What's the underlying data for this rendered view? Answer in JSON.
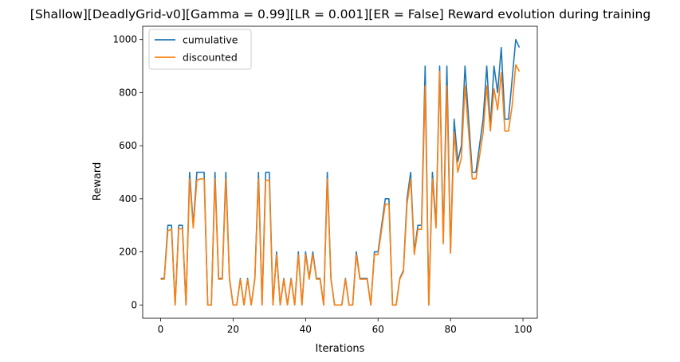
{
  "chart_data": {
    "type": "line",
    "title": "[Shallow][DeadlyGrid-v0][Gamma = 0.99][LR = 0.001][ER = False] Reward evolution during training",
    "xlabel": "Iterations",
    "ylabel": "Reward",
    "xlim": [
      -4.95,
      103.95
    ],
    "ylim": [
      -50,
      1050
    ],
    "xticks": [
      0,
      20,
      40,
      60,
      80,
      100
    ],
    "yticks": [
      0,
      200,
      400,
      600,
      800,
      1000
    ],
    "grid": false,
    "legend_position": "upper-left",
    "x": [
      0,
      1,
      2,
      3,
      4,
      5,
      6,
      7,
      8,
      9,
      10,
      11,
      12,
      13,
      14,
      15,
      16,
      17,
      18,
      19,
      20,
      21,
      22,
      23,
      24,
      25,
      26,
      27,
      28,
      29,
      30,
      31,
      32,
      33,
      34,
      35,
      36,
      37,
      38,
      39,
      40,
      41,
      42,
      43,
      44,
      45,
      46,
      47,
      48,
      49,
      50,
      51,
      52,
      53,
      54,
      55,
      56,
      57,
      58,
      59,
      60,
      61,
      62,
      63,
      64,
      65,
      66,
      67,
      68,
      69,
      70,
      71,
      72,
      73,
      74,
      75,
      76,
      77,
      78,
      79,
      80,
      81,
      82,
      83,
      84,
      85,
      86,
      87,
      88,
      89,
      90,
      91,
      92,
      93,
      94,
      95,
      96,
      97,
      98,
      99
    ],
    "series": [
      {
        "name": "cumulative",
        "color": "#1f77b4",
        "values": [
          100,
          100,
          300,
          300,
          0,
          300,
          300,
          0,
          500,
          300,
          500,
          500,
          500,
          0,
          0,
          500,
          100,
          100,
          500,
          100,
          0,
          0,
          100,
          0,
          100,
          0,
          100,
          500,
          0,
          500,
          500,
          0,
          200,
          0,
          100,
          0,
          100,
          0,
          200,
          0,
          200,
          100,
          200,
          100,
          100,
          0,
          500,
          100,
          0,
          0,
          0,
          100,
          0,
          0,
          200,
          100,
          100,
          100,
          0,
          200,
          200,
          300,
          400,
          400,
          0,
          0,
          100,
          130,
          400,
          500,
          200,
          300,
          300,
          900,
          0,
          500,
          300,
          900,
          240,
          900,
          200,
          700,
          540,
          600,
          900,
          700,
          500,
          500,
          600,
          700,
          900,
          670,
          900,
          800,
          970,
          700,
          700,
          850,
          1000,
          970
        ]
      },
      {
        "name": "discounted",
        "color": "#ff7f0e",
        "values": [
          97,
          97,
          280,
          285,
          0,
          287,
          287,
          0,
          475,
          290,
          470,
          475,
          475,
          0,
          0,
          475,
          97,
          97,
          475,
          97,
          0,
          0,
          97,
          0,
          95,
          0,
          97,
          475,
          0,
          470,
          470,
          0,
          190,
          0,
          97,
          0,
          97,
          0,
          190,
          0,
          190,
          97,
          190,
          97,
          97,
          0,
          475,
          97,
          0,
          0,
          0,
          97,
          0,
          0,
          190,
          97,
          97,
          97,
          0,
          190,
          190,
          285,
          380,
          380,
          0,
          0,
          97,
          125,
          380,
          475,
          190,
          285,
          285,
          825,
          0,
          475,
          290,
          880,
          230,
          825,
          195,
          650,
          500,
          555,
          825,
          650,
          475,
          475,
          560,
          650,
          825,
          655,
          815,
          735,
          875,
          655,
          655,
          750,
          905,
          880
        ]
      }
    ]
  }
}
